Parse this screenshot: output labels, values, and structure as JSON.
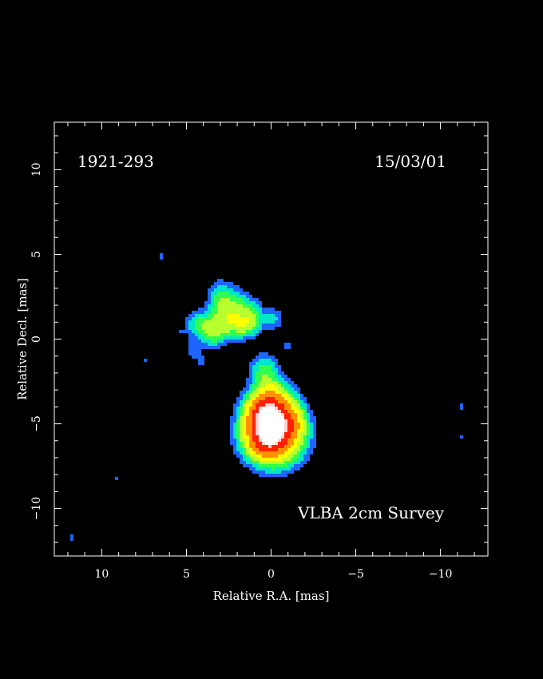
{
  "chart_data": {
    "type": "heatmap",
    "source_name": "1921-293",
    "epoch": "15/03/01",
    "survey": "VLBA 2cm Survey",
    "xlabel": "Relative R.A. [mas]",
    "ylabel": "Relative Decl. [mas]",
    "xlim": [
      12.8,
      -12.8
    ],
    "ylim": [
      -12.8,
      12.8
    ],
    "x_ticks": [
      10,
      5,
      0,
      -5,
      -10
    ],
    "y_ticks": [
      10,
      5,
      0,
      -5,
      -10
    ],
    "x_tick_labels": [
      "10",
      "5",
      "0",
      "−5",
      "−10"
    ],
    "y_tick_labels": [
      "10",
      "5",
      "0",
      "−5",
      "−10"
    ],
    "colormap": [
      "#1e64ff",
      "#00e6c8",
      "#30ff50",
      "#b8ff30",
      "#ffff00",
      "#ff9000",
      "#ff2000",
      "#ffd0d0",
      "#ffffff"
    ],
    "components": [
      {
        "x": 0.0,
        "y": -4.9,
        "sx": 0.75,
        "sy": 1.0,
        "peak": 1.0
      },
      {
        "x": -0.2,
        "y": -5.6,
        "sx": 1.0,
        "sy": 1.0,
        "peak": 0.4
      },
      {
        "x": 0.55,
        "y": -4.4,
        "sx": 0.55,
        "sy": 0.6,
        "peak": 0.25
      },
      {
        "x": 0.5,
        "y": -6.1,
        "sx": 0.6,
        "sy": 0.5,
        "peak": 0.2
      },
      {
        "x": -1.3,
        "y": -4.9,
        "sx": 0.4,
        "sy": 0.6,
        "peak": 0.12
      },
      {
        "x": 0.4,
        "y": -1.9,
        "sx": 0.5,
        "sy": 0.6,
        "peak": 0.09
      },
      {
        "x": 0.1,
        "y": -3.1,
        "sx": 0.45,
        "sy": 0.5,
        "peak": 0.08
      },
      {
        "x": 2.2,
        "y": 1.7,
        "sx": 0.55,
        "sy": 0.7,
        "peak": 0.12
      },
      {
        "x": 3.0,
        "y": 2.2,
        "sx": 0.45,
        "sy": 0.7,
        "peak": 0.09
      },
      {
        "x": 1.2,
        "y": 1.3,
        "sx": 0.45,
        "sy": 0.6,
        "peak": 0.1
      },
      {
        "x": 1.6,
        "y": 0.8,
        "sx": 0.5,
        "sy": 0.45,
        "peak": 0.08
      },
      {
        "x": 2.6,
        "y": 0.9,
        "sx": 0.6,
        "sy": 0.5,
        "peak": 0.09
      },
      {
        "x": 3.3,
        "y": 0.4,
        "sx": 0.45,
        "sy": 0.5,
        "peak": 0.07
      },
      {
        "x": 3.7,
        "y": 0.6,
        "sx": 0.45,
        "sy": 0.6,
        "peak": 0.07
      },
      {
        "x": 4.4,
        "y": 0.9,
        "sx": 0.45,
        "sy": 0.5,
        "peak": 0.06
      },
      {
        "x": -0.1,
        "y": 1.2,
        "sx": 0.4,
        "sy": 0.4,
        "peak": 0.05
      },
      {
        "x": 4.6,
        "y": -0.6,
        "sx": 0.3,
        "sy": 0.4,
        "peak": 0.035
      },
      {
        "x": 4.1,
        "y": -1.3,
        "sx": 0.2,
        "sy": 0.3,
        "peak": 0.022
      },
      {
        "x": 6.5,
        "y": 4.9,
        "sx": 0.12,
        "sy": 0.15,
        "peak": 0.025
      },
      {
        "x": 5.3,
        "y": 0.4,
        "sx": 0.12,
        "sy": 0.15,
        "peak": 0.025
      },
      {
        "x": 7.5,
        "y": -1.2,
        "sx": 0.12,
        "sy": 0.15,
        "peak": 0.025
      },
      {
        "x": 9.1,
        "y": -8.2,
        "sx": 0.12,
        "sy": 0.15,
        "peak": 0.025
      },
      {
        "x": 11.8,
        "y": -11.7,
        "sx": 0.12,
        "sy": 0.15,
        "peak": 0.025
      },
      {
        "x": -1.0,
        "y": -0.4,
        "sx": 0.15,
        "sy": 0.3,
        "peak": 0.028
      },
      {
        "x": -11.2,
        "y": -4.0,
        "sx": 0.1,
        "sy": 0.22,
        "peak": 0.025
      },
      {
        "x": -11.2,
        "y": -5.8,
        "sx": 0.08,
        "sy": 0.12,
        "peak": 0.022
      }
    ]
  }
}
